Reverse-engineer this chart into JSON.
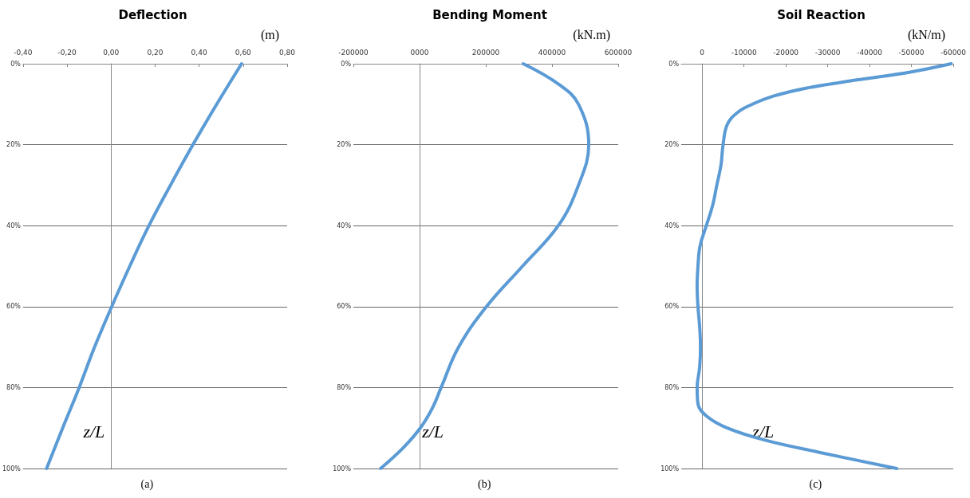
{
  "chart_data": [
    {
      "type": "line",
      "title": "Deflection",
      "xlabel": "(m)",
      "ylabel": "z/L",
      "annotations": [
        "(a)"
      ],
      "grid": "y",
      "marker": "none",
      "xlim": [
        -0.4,
        0.8
      ],
      "xticks": [
        {
          "value": -0.4,
          "label": "-0,40"
        },
        {
          "value": -0.2,
          "label": "-0,20"
        },
        {
          "value": 0,
          "label": "0,00"
        },
        {
          "value": 0.2,
          "label": "0,20"
        },
        {
          "value": 0.4,
          "label": "0,40"
        },
        {
          "value": 0.6,
          "label": "0,60"
        },
        {
          "value": 0.8,
          "label": "0,80"
        }
      ],
      "ylim": [
        100,
        0
      ],
      "yticks": [
        {
          "value": 0,
          "label": "0%"
        },
        {
          "value": 20,
          "label": "20%"
        },
        {
          "value": 40,
          "label": "40%"
        },
        {
          "value": 60,
          "label": "60%"
        },
        {
          "value": 80,
          "label": "80%"
        },
        {
          "value": 100,
          "label": "100%"
        }
      ],
      "series": [
        {
          "color": "#5b9bd5",
          "x": [
            0.593,
            0.48,
            0.372,
            0.27,
            0.172,
            0.085,
            0.003,
            -0.075,
            -0.145,
            -0.22,
            -0.293
          ],
          "values": [
            0,
            10,
            20,
            30,
            40,
            50,
            60,
            70,
            80,
            90,
            100
          ]
        }
      ]
    },
    {
      "type": "line",
      "title": "Bending Moment",
      "xlabel": "(kN.m)",
      "ylabel": "z/L",
      "annotations": [
        "(b)"
      ],
      "grid": "y",
      "marker": "none",
      "xlim": [
        -200000,
        600000
      ],
      "xticks": [
        -200000,
        {
          "value": 0,
          "label": "0000"
        },
        200000,
        400000,
        600000
      ],
      "ylim": [
        100,
        0
      ],
      "yticks": [
        {
          "value": 0,
          "label": "0%"
        },
        {
          "value": 20,
          "label": "20%"
        },
        {
          "value": 40,
          "label": "40%"
        },
        {
          "value": 60,
          "label": "60%"
        },
        {
          "value": 80,
          "label": "80%"
        },
        {
          "value": 100,
          "label": "100%"
        }
      ],
      "series": [
        {
          "color": "#5b9bd5",
          "x": [
            313000,
            419000,
            480000,
            511000,
            480000,
            419000,
            311000,
            202000,
            118000,
            65000,
            39000,
            2000,
            -51000,
            -118000
          ],
          "values": [
            0,
            5,
            10,
            20,
            30,
            40,
            50,
            60,
            70,
            80,
            85,
            90,
            95,
            100
          ]
        }
      ]
    },
    {
      "type": "line",
      "title": "Soil Reaction",
      "xlabel": "(kN/m)",
      "ylabel": "z/L",
      "annotations": [
        "(c)"
      ],
      "grid": "y",
      "marker": "none",
      "xlim": [
        5000,
        -60000
      ],
      "xticks": [
        0,
        -10000,
        -20000,
        -30000,
        -40000,
        -50000,
        -60000
      ],
      "ylim": [
        100,
        0
      ],
      "yticks": [
        {
          "value": 0,
          "label": "0%"
        },
        {
          "value": 20,
          "label": "20%"
        },
        {
          "value": 40,
          "label": "40%"
        },
        {
          "value": 60,
          "label": "60%"
        },
        {
          "value": 80,
          "label": "80%"
        },
        {
          "value": 100,
          "label": "100%"
        }
      ],
      "series": [
        {
          "color": "#5b9bd5",
          "x": [
            -59500,
            -50000,
            -37000,
            -25000,
            -17000,
            -12000,
            -8500,
            -6000,
            -5000,
            -4500,
            -3500,
            -2500,
            -1000,
            500,
            1000,
            1200,
            1000,
            600,
            400,
            600,
            1200,
            1000,
            -1000,
            -6000,
            -15000,
            -28000,
            -46500
          ],
          "values": [
            0,
            2,
            4,
            6,
            8,
            10,
            12,
            15,
            20,
            25,
            30,
            35,
            40,
            45,
            50,
            55,
            60,
            65,
            70,
            75,
            80,
            84,
            87,
            90,
            93,
            96,
            100
          ]
        }
      ]
    }
  ]
}
